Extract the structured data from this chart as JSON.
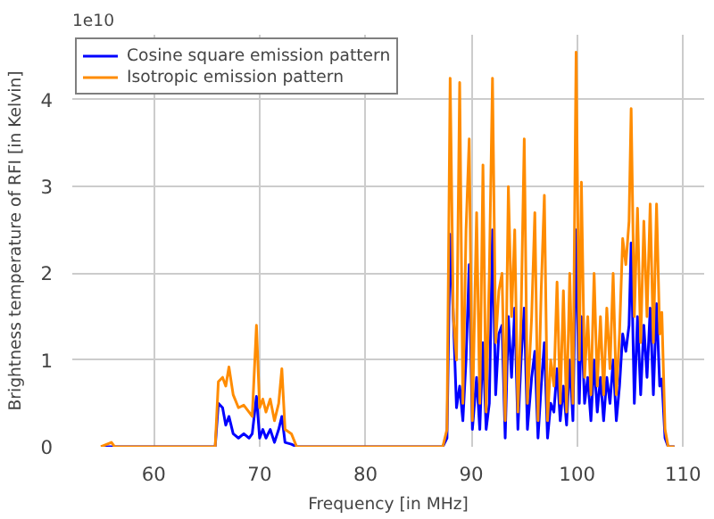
{
  "chart_data": {
    "type": "line",
    "xlabel": "Frequency [in MHz]",
    "ylabel": "Brightness temperature of RFI [in Kelvin]",
    "annotations": [
      "1e10"
    ],
    "x": [
      55,
      56,
      56.3,
      65.8,
      66.1,
      66.5,
      66.8,
      67.1,
      67.5,
      68,
      68.5,
      69,
      69.3,
      69.7,
      70,
      70.3,
      70.6,
      71,
      71.4,
      71.8,
      72.1,
      72.4,
      73,
      73.5,
      87.3,
      87.7,
      88,
      88.3,
      88.6,
      88.9,
      89.2,
      89.5,
      89.8,
      90.1,
      90.5,
      90.8,
      91.1,
      91.4,
      91.7,
      92.0,
      92.3,
      92.6,
      92.9,
      93.2,
      93.5,
      93.8,
      94.1,
      94.4,
      94.7,
      95.0,
      95.3,
      95.7,
      96.0,
      96.3,
      96.6,
      96.9,
      97.2,
      97.5,
      97.8,
      98.1,
      98.4,
      98.7,
      99.0,
      99.3,
      99.6,
      99.9,
      100.2,
      100.4,
      100.7,
      101,
      101.3,
      101.6,
      101.9,
      102.2,
      102.5,
      102.8,
      103.1,
      103.4,
      103.7,
      104.0,
      104.3,
      104.6,
      104.9,
      105.1,
      105.4,
      105.7,
      106,
      106.3,
      106.6,
      106.9,
      107.2,
      107.5,
      107.8,
      108,
      108.3,
      108.6,
      109.2
    ],
    "series": [
      {
        "name": "Cosine square emission pattern",
        "color": "#0000ff",
        "values": [
          0,
          0,
          0,
          0,
          0.5,
          0.45,
          0.25,
          0.35,
          0.15,
          0.1,
          0.15,
          0.1,
          0.15,
          0.58,
          0.1,
          0.2,
          0.1,
          0.2,
          0.05,
          0.2,
          0.35,
          0.05,
          0.03,
          0,
          0,
          0.1,
          2.45,
          1.5,
          0.45,
          0.7,
          0.3,
          1.0,
          2.1,
          0.2,
          0.8,
          0.2,
          1.2,
          0.2,
          0.5,
          2.5,
          0.6,
          1.3,
          1.4,
          0.1,
          1.5,
          0.8,
          1.6,
          0.2,
          1.0,
          1.6,
          0.2,
          0.8,
          1.1,
          0.1,
          0.7,
          1.2,
          0.1,
          0.5,
          0.4,
          0.9,
          0.3,
          0.7,
          0.25,
          1.0,
          0.3,
          2.5,
          0.5,
          1.5,
          0.5,
          0.8,
          0.3,
          1.0,
          0.4,
          0.8,
          0.3,
          0.8,
          0.5,
          1.0,
          0.3,
          0.7,
          1.3,
          1.1,
          1.4,
          2.35,
          0.5,
          1.5,
          0.6,
          1.4,
          0.8,
          1.6,
          0.6,
          1.65,
          0.7,
          0.78,
          0.1,
          0,
          0
        ]
      },
      {
        "name": "Isotropic emission pattern",
        "color": "#ff8c00",
        "values": [
          0,
          0.05,
          0,
          0,
          0.75,
          0.8,
          0.7,
          0.92,
          0.6,
          0.45,
          0.48,
          0.4,
          0.35,
          1.4,
          0.45,
          0.55,
          0.4,
          0.55,
          0.3,
          0.5,
          0.9,
          0.2,
          0.15,
          0,
          0,
          0.2,
          4.25,
          1.5,
          1.0,
          4.2,
          0.5,
          2.5,
          3.55,
          0.3,
          2.7,
          0.5,
          3.25,
          0.4,
          2.0,
          4.25,
          1.2,
          1.8,
          2.0,
          0.3,
          3.0,
          1.5,
          2.5,
          0.4,
          1.5,
          3.55,
          0.5,
          1.5,
          2.7,
          0.3,
          1.8,
          2.9,
          0.3,
          1.0,
          0.7,
          1.9,
          0.5,
          1.8,
          0.4,
          2.0,
          0.5,
          4.55,
          1.0,
          3.05,
          0.8,
          1.5,
          0.6,
          2.0,
          0.7,
          1.5,
          0.6,
          1.6,
          0.9,
          2.0,
          0.6,
          1.3,
          2.4,
          2.1,
          2.6,
          3.9,
          1.5,
          2.75,
          1.2,
          2.6,
          1.5,
          2.8,
          1.2,
          2.8,
          1.3,
          1.55,
          0.2,
          0,
          0
        ]
      }
    ],
    "xlim": [
      52.3,
      112
    ],
    "ylim": [
      0,
      4.75
    ],
    "xticks": [
      60,
      70,
      80,
      90,
      100,
      110
    ],
    "yticks": [
      0,
      1,
      2,
      3,
      4
    ],
    "grid": true,
    "legend": "top left",
    "line_style": "solid",
    "marker": "none"
  }
}
